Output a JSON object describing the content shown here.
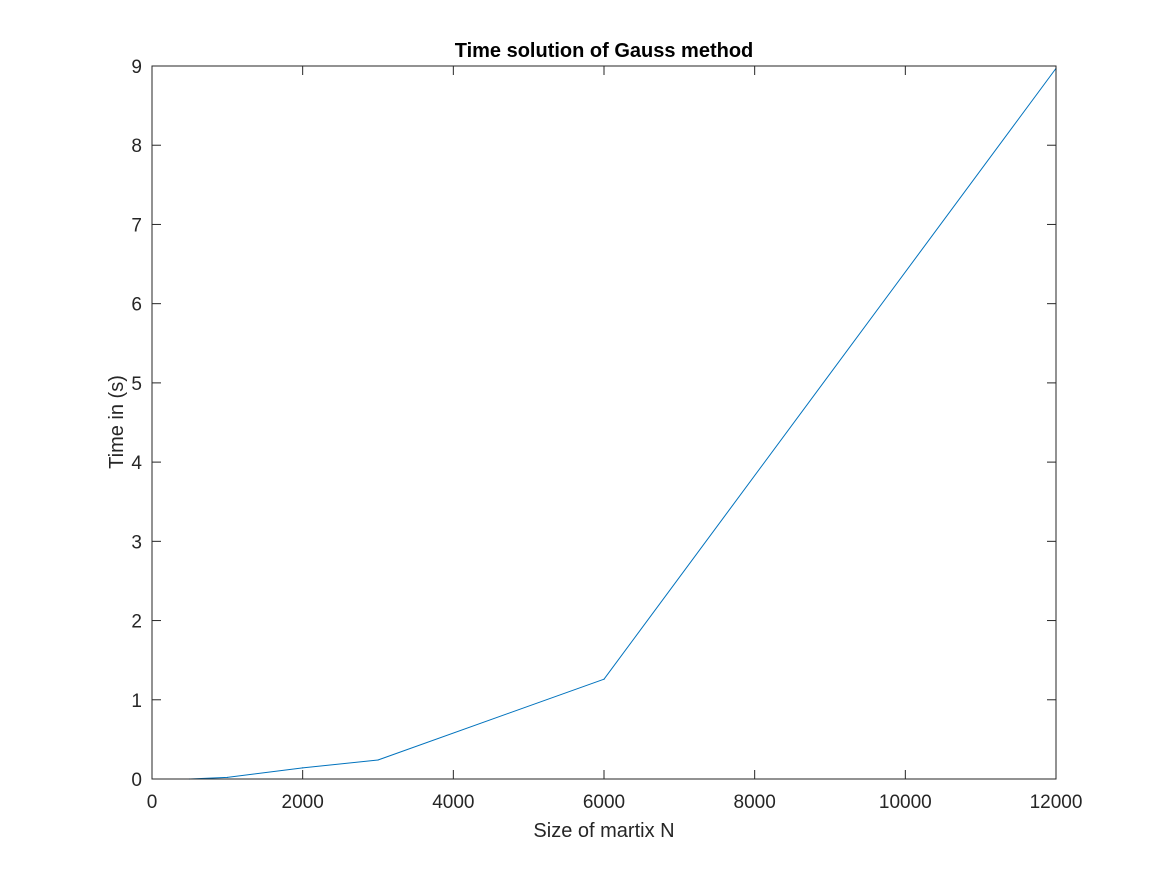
{
  "chart_data": {
    "type": "line",
    "title": "Time solution of Gauss method",
    "xlabel": "Size of martix N",
    "ylabel": "Time in (s)",
    "xlim": [
      0,
      12000
    ],
    "ylim": [
      0,
      9
    ],
    "xticks": [
      0,
      2000,
      4000,
      6000,
      8000,
      10000,
      12000
    ],
    "yticks": [
      0,
      1,
      2,
      3,
      4,
      5,
      6,
      7,
      8,
      9
    ],
    "grid": false,
    "legend": "none",
    "series": [
      {
        "color": "#0072BD",
        "x": [
          500,
          1000,
          2000,
          3000,
          6000,
          12000
        ],
        "y": [
          0.0,
          0.02,
          0.14,
          0.24,
          1.26,
          8.97
        ]
      }
    ]
  }
}
